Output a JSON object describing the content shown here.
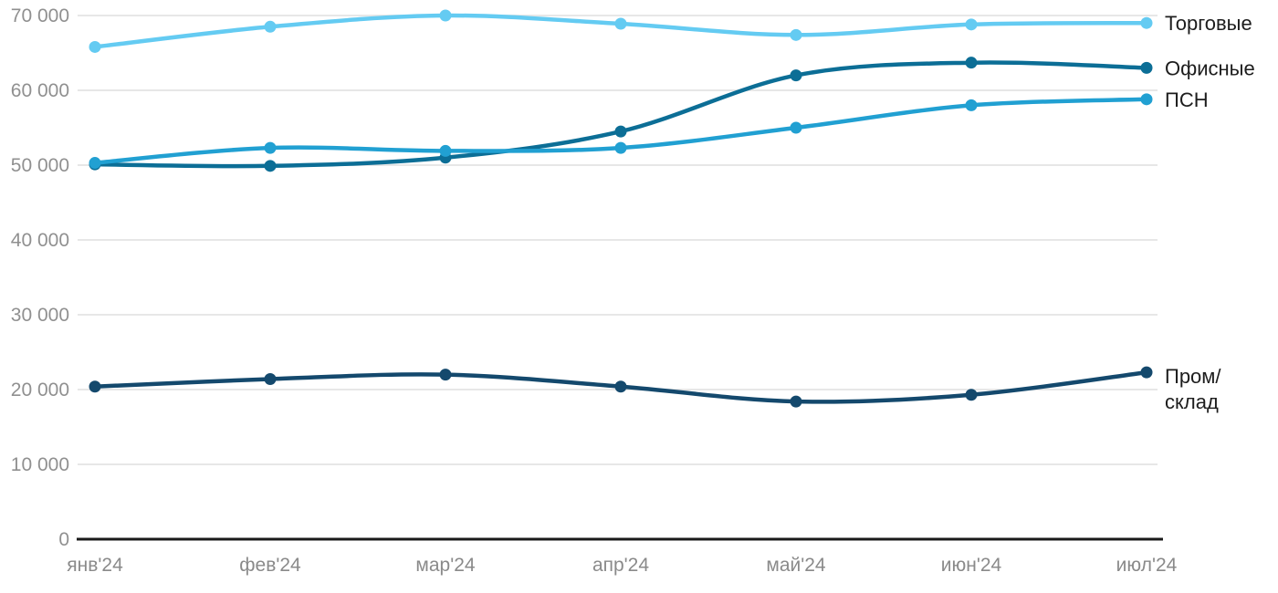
{
  "chart_data": {
    "type": "line",
    "title": "",
    "xlabel": "",
    "ylabel": "",
    "x_categories": [
      "янв'24",
      "фев'24",
      "мар'24",
      "апр'24",
      "май'24",
      "июн'24",
      "июл'24"
    ],
    "series": [
      {
        "name": "Торговые",
        "color": "#64CBF2",
        "values": [
          65800,
          68500,
          70000,
          68900,
          67400,
          68800,
          69000
        ],
        "label_lines": [
          "Торговые"
        ]
      },
      {
        "name": "Офисные",
        "color": "#0C6E96",
        "values": [
          50100,
          49900,
          51000,
          54500,
          62000,
          63700,
          63000
        ],
        "label_lines": [
          "Офисные"
        ]
      },
      {
        "name": "ПСН",
        "color": "#21A0D2",
        "values": [
          50300,
          52300,
          51900,
          52300,
          55000,
          58000,
          58800
        ],
        "label_lines": [
          "ПСН"
        ]
      },
      {
        "name": "Пром/склад",
        "color": "#14496D",
        "values": [
          20400,
          21400,
          22000,
          20400,
          18400,
          19300,
          22300
        ],
        "label_lines": [
          "Пром/",
          "склад"
        ]
      }
    ],
    "y_ticks": [
      0,
      10000,
      20000,
      30000,
      40000,
      50000,
      60000,
      70000
    ],
    "y_tick_labels": [
      "0",
      "10 000",
      "20 000",
      "30 000",
      "40 000",
      "50 000",
      "60 000",
      "70 000"
    ],
    "ylim": [
      0,
      70000
    ],
    "grid": true,
    "legend_position": "right of line ends",
    "marker": "circle"
  },
  "colors": {
    "background": "#ffffff",
    "gridline": "#E7E7E7",
    "axis_line": "#1A1A1A",
    "tick_label": "#909090",
    "series_label": "#1D1D1D"
  }
}
